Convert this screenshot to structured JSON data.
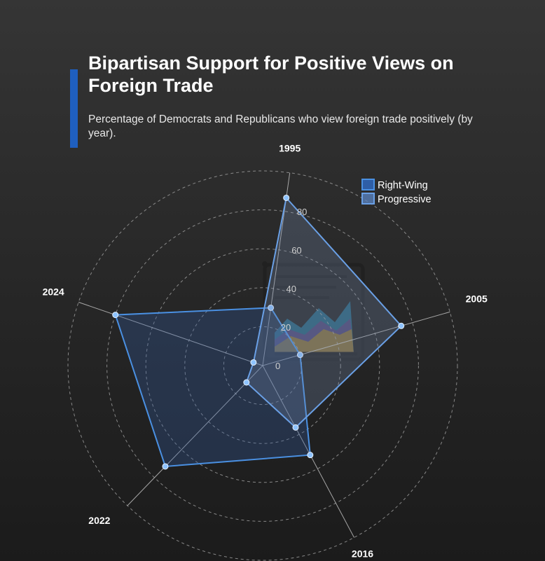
{
  "header": {
    "title": "Bipartisan Support for Positive Views on Foreign Trade",
    "subtitle": "Percentage of Democrats and Republicans who view foreign trade positively (by year).",
    "accent_color": "#1f5fbf"
  },
  "chart_data": {
    "type": "radar",
    "categories": [
      "1995",
      "2005",
      "2016",
      "2022",
      "2024"
    ],
    "ticks": [
      0,
      20,
      40,
      60,
      80
    ],
    "rmax": 100,
    "grid": true,
    "legend_position": "top-right",
    "series": [
      {
        "name": "Right-Wing",
        "values": [
          30,
          20,
          52,
          72,
          80
        ],
        "stroke": "#4a90e2",
        "fill": "rgba(50,90,160,0.32)",
        "swatch": "#2f6fd0"
      },
      {
        "name": "Progressive",
        "values": [
          87,
          74,
          36,
          12,
          5
        ],
        "stroke": "#6aa0e6",
        "fill": "rgba(120,140,175,0.28)",
        "swatch": "#5b86c4"
      }
    ]
  },
  "watermark_icon": "area-chart-document-icon"
}
